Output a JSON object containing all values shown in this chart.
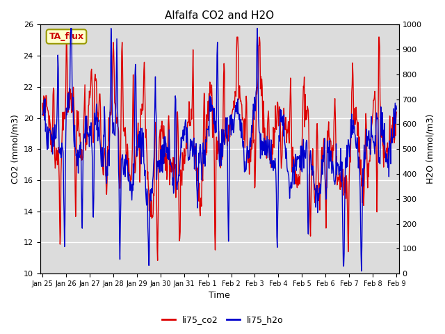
{
  "title": "Alfalfa CO2 and H2O",
  "xlabel": "Time",
  "ylabel_left": "CO2 (mmol/m3)",
  "ylabel_right": "H2O (mmol/m3)",
  "ylim_left": [
    10,
    26
  ],
  "ylim_right": [
    0,
    1000
  ],
  "yticks_left": [
    10,
    12,
    14,
    16,
    18,
    20,
    22,
    24,
    26
  ],
  "yticks_right": [
    0,
    100,
    200,
    300,
    400,
    500,
    600,
    700,
    800,
    900,
    1000
  ],
  "color_co2": "#dd0000",
  "color_h2o": "#0000cc",
  "bg_color": "#dcdcdc",
  "annotation_text": "TA_flux",
  "annotation_bg": "#ffffcc",
  "annotation_border": "#999900",
  "legend_co2": "li75_co2",
  "legend_h2o": "li75_h2o",
  "x_tick_labels": [
    "Jan 25",
    "Jan 26",
    "Jan 27",
    "Jan 28",
    "Jan 29",
    "Jan 30",
    "Jan 31",
    "Feb 1",
    "Feb 2",
    "Feb 3",
    "Feb 4",
    "Feb 5",
    "Feb 6",
    "Feb 7",
    "Feb 8",
    "Feb 9"
  ],
  "linewidth": 1.0
}
